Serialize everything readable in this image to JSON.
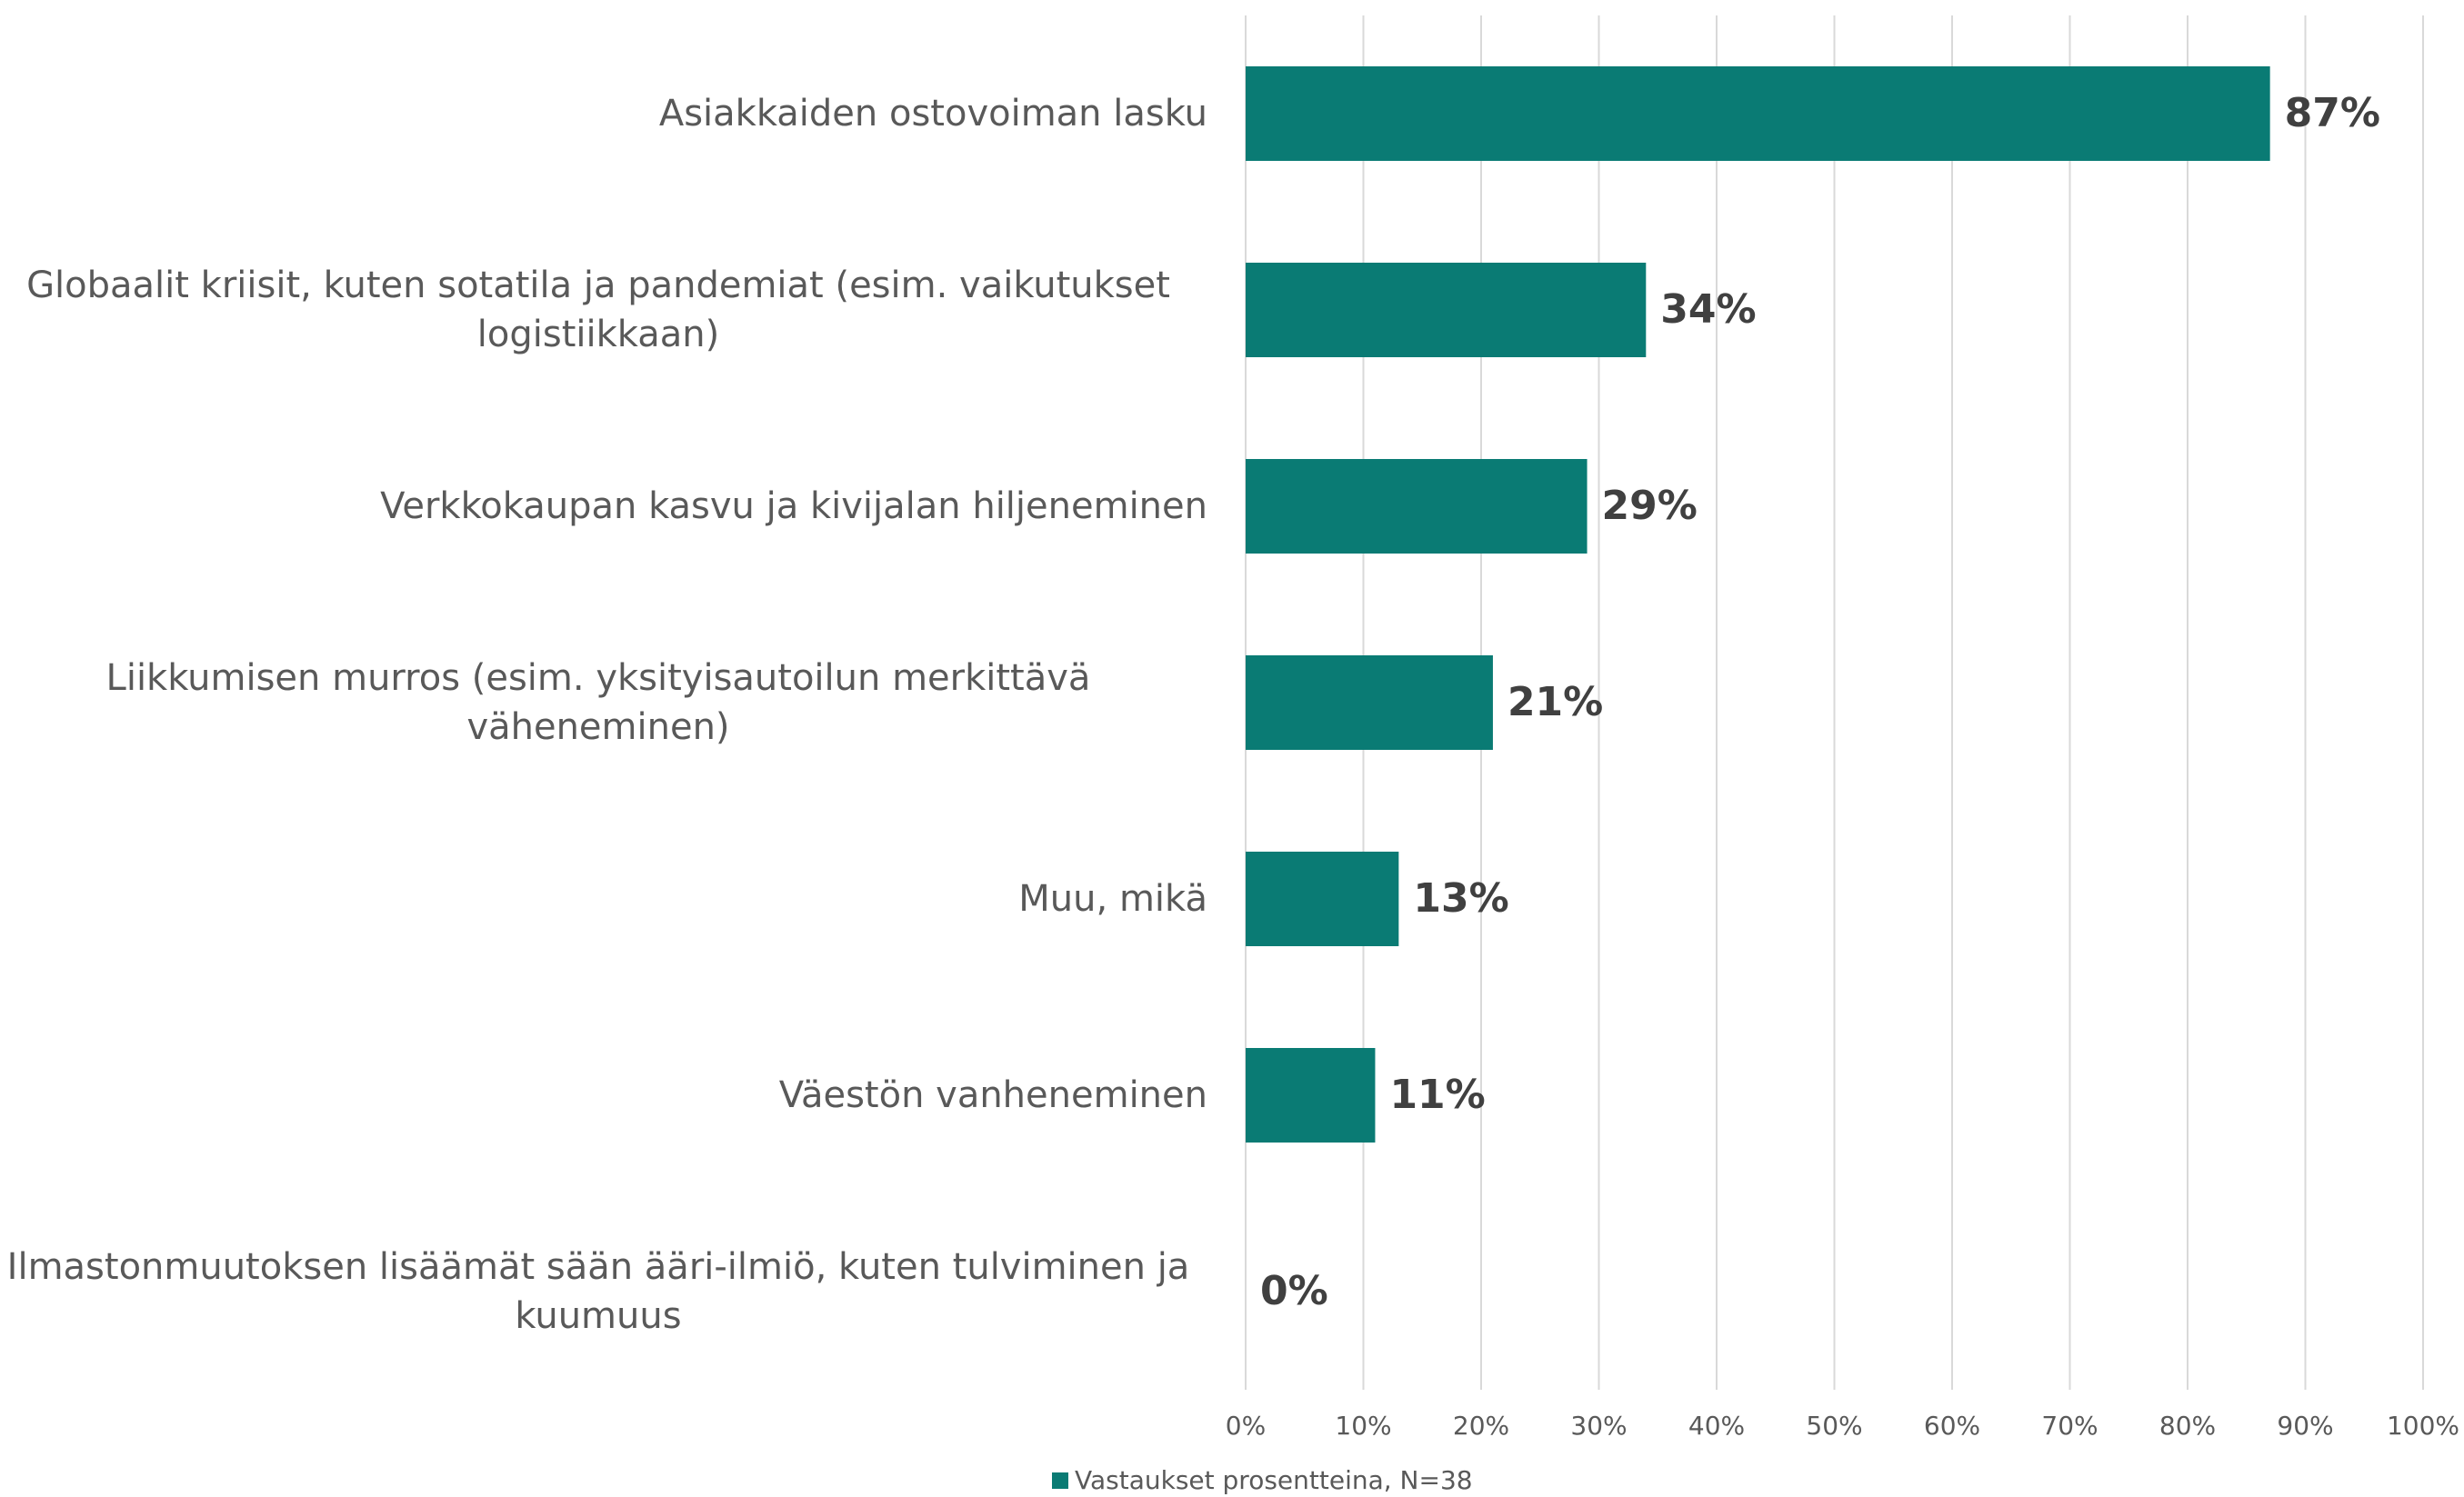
{
  "chart_data": {
    "type": "bar",
    "orientation": "horizontal",
    "categories": [
      "Asiakkaiden ostovoiman lasku",
      "Globaalit kriisit, kuten sotatila ja pandemiat (esim. vaikutukset logistiikkaan)",
      "Verkkokaupan kasvu ja kivijalan hiljeneminen",
      "Liikkumisen murros (esim. yksityisautoilun merkittävä väheneminen)",
      "Muu, mikä",
      "Väestön vanheneminen",
      "Ilmastonmuutoksen lisäämät sään ääri-ilmiö, kuten tulviminen ja kuumuus"
    ],
    "series": [
      {
        "name": "Vastaukset prosentteina, N=38",
        "color": "#0a7b74",
        "values": [
          87,
          34,
          29,
          21,
          13,
          11,
          0
        ],
        "value_labels": [
          "87%",
          "34%",
          "29%",
          "21%",
          "13%",
          "11%",
          "0%"
        ]
      }
    ],
    "xlim": [
      0,
      100
    ],
    "xticks": [
      {
        "value": 0,
        "label": "0%"
      },
      {
        "value": 10,
        "label": "10%"
      },
      {
        "value": 20,
        "label": "20%"
      },
      {
        "value": 30,
        "label": "30%"
      },
      {
        "value": 40,
        "label": "40%"
      },
      {
        "value": 50,
        "label": "50%"
      },
      {
        "value": 60,
        "label": "60%"
      },
      {
        "value": 70,
        "label": "70%"
      },
      {
        "value": 80,
        "label": "80%"
      },
      {
        "value": 90,
        "label": "90%"
      },
      {
        "value": 100,
        "label": "100%"
      }
    ],
    "grid": true,
    "legend": "bottom"
  }
}
